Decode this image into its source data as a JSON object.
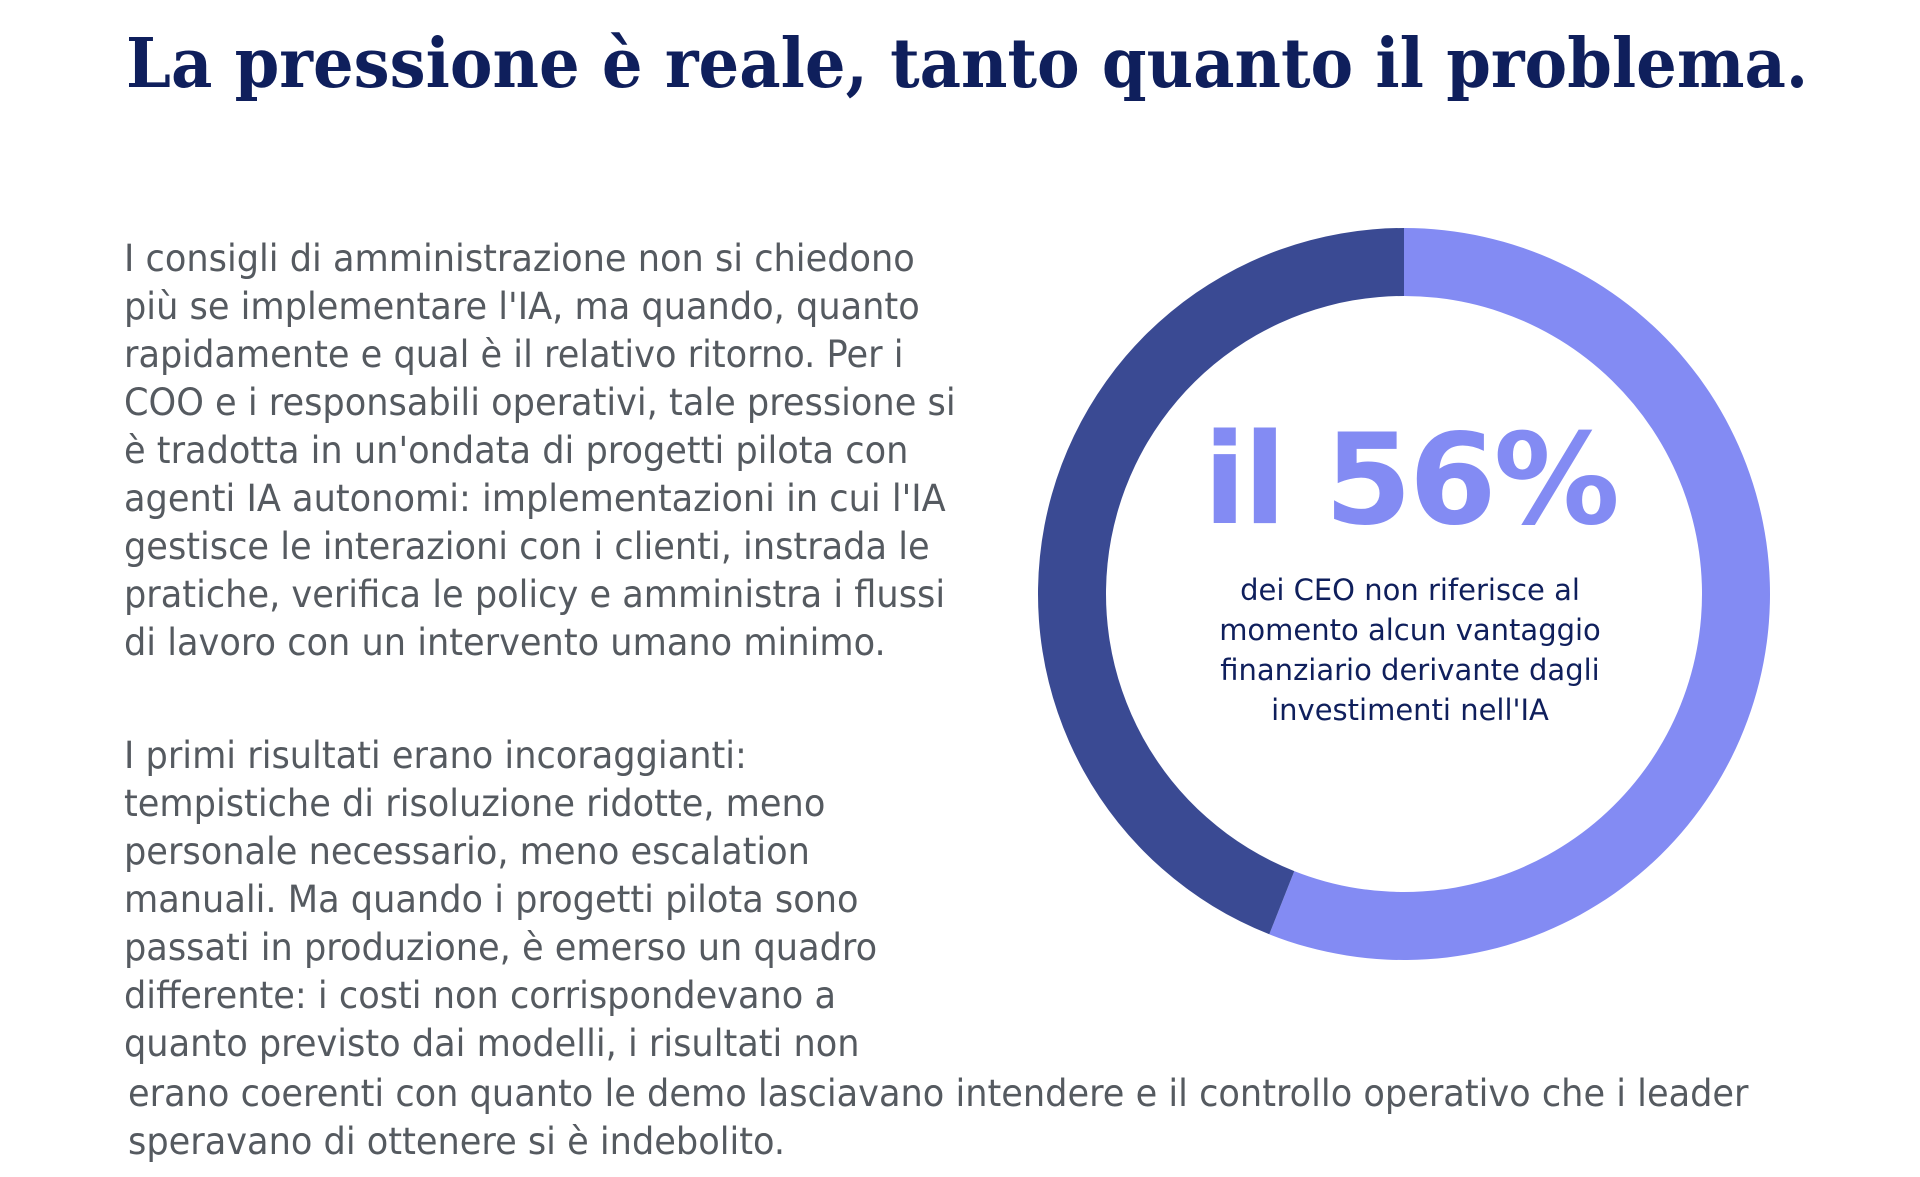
{
  "title": "La pressione è reale, tanto quanto il problema.",
  "paragraphs": [
    "I consigli di amministrazione non si chiedono più se implementare l'IA, ma quando, quanto rapidamente e qual è il relativo ritorno. Per i COO e i responsabili operativi, tale pressione si è tradotta in un'ondata di progetti pilota con agenti IA autonomi: implementazioni in cui l'IA gestisce le interazioni con i clienti, instrada le pratiche, verifica le policy e amministra i flussi di lavoro con un intervento umano minimo.",
    "I primi risultati erano incoraggianti: tempistiche di risoluzione ridotte, meno personale necessario, meno escalation manuali. Ma quando i progetti pilota sono passati in produzione, è emerso un quadro differente: i costi non corrispondevano a quanto previsto dai modelli, i risultati non",
    "erano coerenti con quanto le demo lasciavano intendere e il controllo operativo che i leader speravano di ottenere si è indebolito."
  ],
  "stat": {
    "headline": "il 56%",
    "description": "dei CEO non riferisce al momento alcun vantaggio finanziario derivante dagli investimenti nell'IA"
  },
  "chart_data": {
    "type": "pie",
    "donut": true,
    "slices": [
      {
        "value": 56,
        "color": "#838bf3"
      },
      {
        "value": 44,
        "color": "#3a4a93"
      }
    ]
  }
}
